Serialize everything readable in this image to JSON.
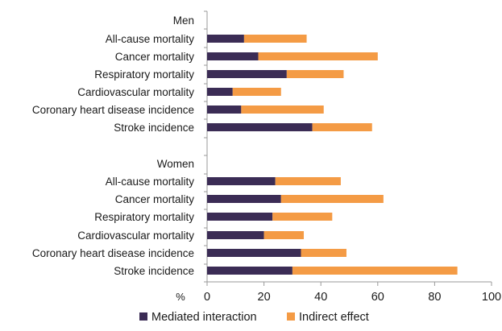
{
  "chart_data": {
    "type": "bar",
    "orientation": "horizontal",
    "stacked": true,
    "x_axis_unit": "%",
    "xlim": [
      0,
      100
    ],
    "x_ticks": [
      0,
      20,
      40,
      60,
      80,
      100
    ],
    "grid": false,
    "legend_position": "bottom",
    "groups": [
      {
        "name": "Men",
        "categories": [
          "All-cause mortality",
          "Cancer mortality",
          "Respiratory mortality",
          "Cardiovascular mortality",
          "Coronary heart disease incidence",
          "Stroke incidence"
        ],
        "series": [
          {
            "name": "Mediated interaction",
            "values": [
              13,
              18,
              28,
              9,
              12,
              37
            ]
          },
          {
            "name": "Indirect effect",
            "values": [
              22,
              42,
              20,
              17,
              29,
              21
            ]
          }
        ]
      },
      {
        "name": "Women",
        "categories": [
          "All-cause mortality",
          "Cancer mortality",
          "Respiratory mortality",
          "Cardiovascular mortality",
          "Coronary heart disease incidence",
          "Stroke incidence"
        ],
        "series": [
          {
            "name": "Mediated interaction",
            "values": [
              24,
              26,
              23,
              20,
              33,
              30
            ]
          },
          {
            "name": "Indirect effect",
            "values": [
              23,
              36,
              21,
              14,
              16,
              58
            ]
          }
        ]
      }
    ],
    "legend": [
      "Mediated interaction",
      "Indirect effect"
    ],
    "colors": {
      "Mediated interaction": "#3b2c55",
      "Indirect effect": "#f49b45"
    }
  }
}
